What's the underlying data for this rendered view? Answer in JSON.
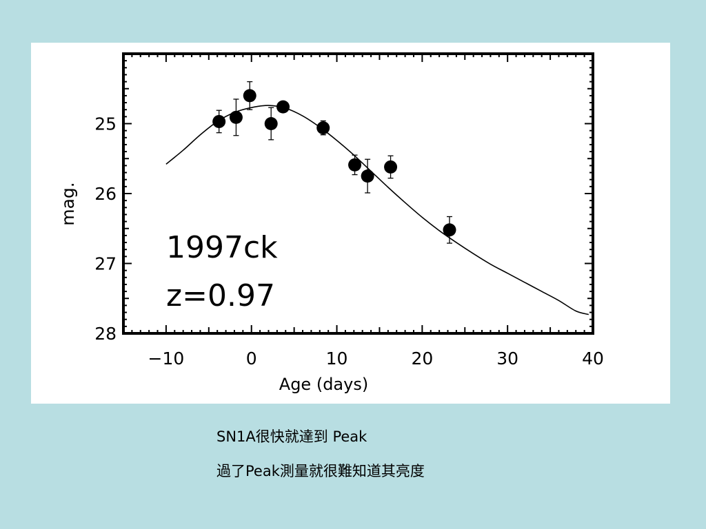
{
  "colors": {
    "background": "#b8dee2",
    "panel": "#ffffff",
    "ink": "#000000"
  },
  "chart_data": {
    "type": "scatter",
    "xlabel": "Age (days)",
    "ylabel": "mag.",
    "xlim": [
      -15,
      40
    ],
    "ylim": [
      28,
      24
    ],
    "y_inverted": true,
    "grid": false,
    "x_ticks": [
      -10,
      0,
      10,
      20,
      30,
      40
    ],
    "x_tick_labels": [
      "−10",
      "0",
      "10",
      "20",
      "30",
      "40"
    ],
    "y_ticks": [
      25,
      26,
      27,
      28
    ],
    "y_tick_labels": [
      "25",
      "26",
      "27",
      "28"
    ],
    "annotations": [
      "1997ck",
      "z=0.97"
    ],
    "series": [
      {
        "kind": "points",
        "x": [
          -3.8,
          -1.8,
          -0.2,
          2.3,
          3.7,
          8.4,
          12.1,
          13.6,
          16.3,
          23.2
        ],
        "y": [
          24.97,
          24.91,
          24.6,
          25.0,
          24.76,
          25.06,
          25.59,
          25.75,
          25.62,
          26.52
        ],
        "err": [
          0.16,
          0.26,
          0.2,
          0.23,
          0.05,
          0.1,
          0.14,
          0.24,
          0.16,
          0.19
        ]
      },
      {
        "kind": "curve",
        "x": [
          -10,
          -8,
          -6,
          -4,
          -2,
          0,
          2,
          4,
          6,
          8,
          10,
          12,
          14,
          16,
          18,
          20,
          22,
          24,
          26,
          28,
          30,
          32,
          34,
          36,
          38,
          39.5
        ],
        "y": [
          25.58,
          25.38,
          25.16,
          24.97,
          24.84,
          24.77,
          24.74,
          24.78,
          24.89,
          25.05,
          25.24,
          25.45,
          25.68,
          25.91,
          26.13,
          26.34,
          26.53,
          26.7,
          26.86,
          27.01,
          27.14,
          27.27,
          27.4,
          27.53,
          27.68,
          27.73
        ]
      }
    ]
  },
  "captions": {
    "line1": "SN1A很快就達到 Peak",
    "line2": "過了Peak測量就很難知道其亮度"
  }
}
